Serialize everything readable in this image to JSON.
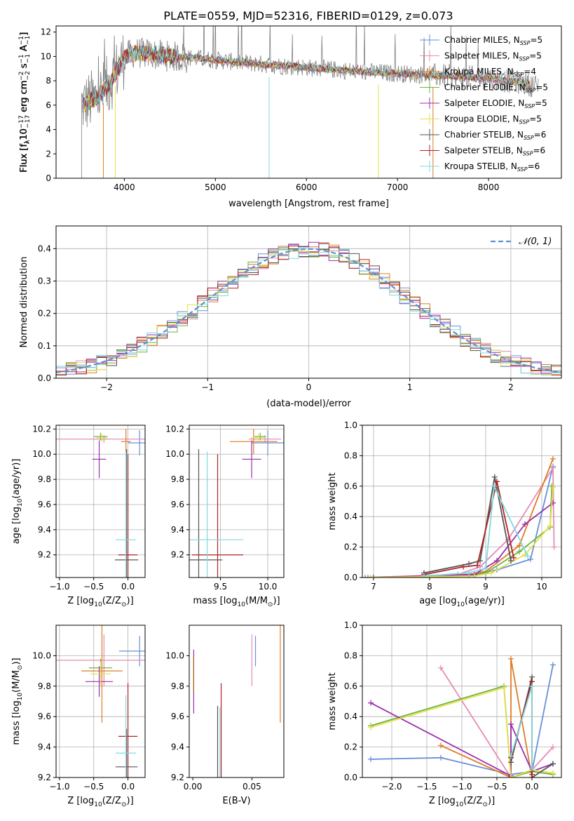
{
  "title": "PLATE=0559, MJD=52316, FIBERID=0129, z=0.073",
  "palette": {
    "Chabrier MILES": "#6a8fd8",
    "Salpeter MILES": "#e58bb8",
    "Kroupa MILES": "#e07b25",
    "Chabrier ELODIE": "#6db33f",
    "Salpeter ELODIE": "#9b2fae",
    "Kroupa ELODIE": "#e5e04a",
    "Chabrier STELIB": "#555555",
    "Salpeter STELIB": "#b22222",
    "Kroupa STELIB": "#7fdbe0",
    "data": "#808080",
    "gauss": "#5b8fd9",
    "grid": "#b0b0b0"
  },
  "chart_data": [
    {
      "id": "spectrum",
      "type": "line",
      "xlabel": "wavelength [Angstrom, rest frame]",
      "ylabel_parts": [
        "Flux [f",
        "λ",
        "10",
        "−17",
        " erg cm",
        "−2",
        " s",
        "−1",
        " A",
        "−1",
        "]"
      ],
      "xlim": [
        3250,
        8800
      ],
      "ylim": [
        0,
        12.5
      ],
      "xticks": [
        4000,
        5000,
        6000,
        7000,
        8000
      ],
      "yticks": [
        0,
        2,
        4,
        6,
        8,
        10,
        12
      ],
      "grid": false,
      "legend_position": "right",
      "legend": [
        {
          "name": "Chabrier MILES",
          "sub": "5"
        },
        {
          "name": "Salpeter MILES",
          "sub": "5"
        },
        {
          "name": "Kroupa MILES",
          "sub": "4"
        },
        {
          "name": "Chabrier ELODIE",
          "sub": "5"
        },
        {
          "name": "Salpeter ELODIE",
          "sub": "5"
        },
        {
          "name": "Kroupa ELODIE",
          "sub": "5"
        },
        {
          "name": "Chabrier STELIB",
          "sub": "6"
        },
        {
          "name": "Salpeter STELIB",
          "sub": "6"
        },
        {
          "name": "Kroupa STELIB",
          "sub": "6"
        }
      ],
      "continuum": {
        "x": [
          3530,
          3700,
          3800,
          3900,
          4000,
          4100,
          4300,
          4500,
          4700,
          5000,
          5300,
          5600,
          6000,
          6500,
          7000,
          7300,
          7500,
          8000,
          8400,
          8550
        ],
        "y": [
          6.0,
          6.6,
          7.4,
          8.6,
          9.9,
          10.3,
          10.2,
          10.0,
          9.9,
          9.7,
          9.5,
          9.3,
          9.1,
          8.8,
          8.6,
          8.5,
          8.4,
          8.2,
          7.8,
          7.5
        ]
      }
    },
    {
      "id": "residuals",
      "type": "histogram",
      "xlabel": "(data-model)/error",
      "ylabel": "Normed distribution",
      "xlim": [
        -2.5,
        2.5
      ],
      "ylim": [
        0,
        0.47
      ],
      "xticks": [
        -2,
        -1,
        0,
        1,
        2
      ],
      "yticks": [
        0.0,
        0.1,
        0.2,
        0.3,
        0.4
      ],
      "grid": true,
      "legend_position": "top-right",
      "gauss_label": "𝒩(0, 1)"
    },
    {
      "id": "age_vs_Z",
      "type": "scatter",
      "xlabel_parts": [
        "Z [log",
        "10",
        "(Z/Z",
        "⊙",
        ")]"
      ],
      "ylabel_parts": [
        "age  [log",
        "10",
        "(age/yr)]"
      ],
      "xlim": [
        -1.05,
        0.25
      ],
      "ylim": [
        9.02,
        10.23
      ],
      "xticks": [
        -1.0,
        -0.5,
        0.0
      ],
      "yticks": [
        9.2,
        9.4,
        9.6,
        9.8,
        10.0,
        10.2
      ],
      "grid": true,
      "points": [
        {
          "m": "Chabrier MILES",
          "x": 0.17,
          "y": 10.09,
          "xerr": 0.17,
          "yerr": 0.1
        },
        {
          "m": "Salpeter MILES",
          "x": -0.35,
          "y": 10.12,
          "xerr": 0.8,
          "yerr": 0.03
        },
        {
          "m": "Kroupa MILES",
          "x": -0.03,
          "y": 10.1,
          "xerr": 0.07,
          "yerr": 0.1
        },
        {
          "m": "Chabrier ELODIE",
          "x": -0.4,
          "y": 10.14,
          "xerr": 0.1,
          "yerr": 0.03
        },
        {
          "m": "Salpeter ELODIE",
          "x": -0.42,
          "y": 9.96,
          "xerr": 0.1,
          "yerr": 0.15
        },
        {
          "m": "Kroupa ELODIE",
          "x": -0.38,
          "y": 10.13,
          "xerr": 0.08,
          "yerr": 0.03
        },
        {
          "m": "Chabrier STELIB",
          "x": -0.02,
          "y": 9.16,
          "xerr": 0.17,
          "yerr": 0.88
        },
        {
          "m": "Salpeter STELIB",
          "x": 0.0,
          "y": 9.2,
          "xerr": 0.14,
          "yerr": 0.8
        },
        {
          "m": "Kroupa STELIB",
          "x": -0.03,
          "y": 9.32,
          "xerr": 0.15,
          "yerr": 0.7
        }
      ]
    },
    {
      "id": "age_vs_mass",
      "type": "scatter",
      "xlabel_parts": [
        "mass [log",
        "10",
        "(M/M",
        "⊙",
        ")]"
      ],
      "ylabel_parts": [],
      "xlim": [
        9.17,
        10.17
      ],
      "ylim": [
        9.02,
        10.23
      ],
      "xticks": [
        9.5,
        10.0
      ],
      "yticks": [
        9.2,
        9.4,
        9.6,
        9.8,
        10.0,
        10.2
      ],
      "grid": true,
      "points": [
        {
          "m": "Chabrier MILES",
          "x": 10.0,
          "y": 10.09,
          "xerr": 0.17,
          "yerr": 0.1
        },
        {
          "m": "Salpeter MILES",
          "x": 9.97,
          "y": 10.12,
          "xerr": 0.17,
          "yerr": 0.03
        },
        {
          "m": "Kroupa MILES",
          "x": 9.85,
          "y": 10.1,
          "xerr": 0.25,
          "yerr": 0.1
        },
        {
          "m": "Chabrier ELODIE",
          "x": 9.92,
          "y": 10.14,
          "xerr": 0.06,
          "yerr": 0.03
        },
        {
          "m": "Salpeter ELODIE",
          "x": 9.83,
          "y": 9.96,
          "xerr": 0.1,
          "yerr": 0.15
        },
        {
          "m": "Kroupa ELODIE",
          "x": 9.9,
          "y": 10.13,
          "xerr": 0.08,
          "yerr": 0.03
        },
        {
          "m": "Chabrier STELIB",
          "x": 9.27,
          "y": 9.16,
          "xerr": 0.25,
          "yerr": 0.88
        },
        {
          "m": "Salpeter STELIB",
          "x": 9.47,
          "y": 9.2,
          "xerr": 0.27,
          "yerr": 0.8
        },
        {
          "m": "Kroupa STELIB",
          "x": 9.36,
          "y": 9.32,
          "xerr": 0.38,
          "yerr": 0.7
        }
      ]
    },
    {
      "id": "massweight_vs_age",
      "type": "line",
      "xlabel_parts": [
        "age  [log",
        "10",
        "(age/yr)]"
      ],
      "ylabel": "mass weight",
      "xlim": [
        6.8,
        10.35
      ],
      "ylim": [
        0,
        1.0
      ],
      "xticks": [
        7,
        8,
        9,
        10
      ],
      "yticks": [
        0.0,
        0.2,
        0.4,
        0.6,
        0.8,
        1.0
      ],
      "grid": true,
      "series": [
        {
          "m": "Chabrier MILES",
          "x": [
            6.85,
            8.8,
            9.2,
            9.8,
            10.2
          ],
          "y": [
            0.0,
            0.02,
            0.05,
            0.12,
            0.73
          ]
        },
        {
          "m": "Salpeter MILES",
          "x": [
            6.85,
            8.5,
            8.9,
            9.4,
            10.2,
            10.22
          ],
          "y": [
            0.0,
            0.02,
            0.07,
            0.25,
            0.72,
            0.2
          ]
        },
        {
          "m": "Kroupa MILES",
          "x": [
            6.95,
            8.7,
            9.0,
            9.6,
            10.2
          ],
          "y": [
            0.0,
            0.02,
            0.04,
            0.21,
            0.78
          ]
        },
        {
          "m": "Chabrier ELODIE",
          "x": [
            6.9,
            8.7,
            9.0,
            9.6,
            10.15,
            10.18
          ],
          "y": [
            0.0,
            0.01,
            0.03,
            0.17,
            0.33,
            0.6
          ]
        },
        {
          "m": "Salpeter ELODIE",
          "x": [
            7.0,
            8.8,
            9.2,
            9.7,
            10.2
          ],
          "y": [
            0.0,
            0.02,
            0.11,
            0.35,
            0.49
          ]
        },
        {
          "m": "Kroupa ELODIE",
          "x": [
            6.95,
            8.8,
            9.1,
            9.7,
            10.15,
            10.2
          ],
          "y": [
            0.0,
            0.01,
            0.03,
            0.15,
            0.34,
            0.59
          ]
        },
        {
          "m": "Chabrier STELIB",
          "x": [
            7.9,
            8.7,
            8.9,
            9.16,
            9.45
          ],
          "y": [
            0.03,
            0.09,
            0.11,
            0.66,
            0.11
          ]
        },
        {
          "m": "Salpeter STELIB",
          "x": [
            7.9,
            8.6,
            8.85,
            9.2,
            9.5
          ],
          "y": [
            0.02,
            0.07,
            0.08,
            0.63,
            0.13
          ]
        },
        {
          "m": "Kroupa STELIB",
          "x": [
            7.9,
            8.7,
            9.0,
            9.15,
            9.75
          ],
          "y": [
            0.01,
            0.03,
            0.06,
            0.6,
            0.14
          ]
        }
      ]
    },
    {
      "id": "mass_vs_Z",
      "type": "scatter",
      "xlabel_parts": [
        "Z [log",
        "10",
        "(Z/Z",
        "⊙",
        ")]"
      ],
      "ylabel_parts": [
        "mass [log",
        "10",
        "(M/M",
        "⊙",
        ")]"
      ],
      "xlim": [
        -1.05,
        0.25
      ],
      "ylim": [
        9.2,
        10.2
      ],
      "xticks": [
        -1.0,
        -0.5,
        0.0
      ],
      "yticks": [
        9.2,
        9.4,
        9.6,
        9.8,
        10.0
      ],
      "grid": true,
      "points": [
        {
          "m": "Chabrier MILES",
          "x": 0.17,
          "y": 10.03,
          "xerr": 0.3,
          "yerr": 0.1
        },
        {
          "m": "Salpeter MILES",
          "x": -0.35,
          "y": 9.97,
          "xerr": 0.7,
          "yerr": 0.17
        },
        {
          "m": "Kroupa MILES",
          "x": -0.38,
          "y": 9.9,
          "xerr": 0.3,
          "yerr": 0.34
        },
        {
          "m": "Chabrier ELODIE",
          "x": -0.4,
          "y": 9.92,
          "xerr": 0.17,
          "yerr": 0.06
        },
        {
          "m": "Salpeter ELODIE",
          "x": -0.42,
          "y": 9.83,
          "xerr": 0.2,
          "yerr": 0.1
        },
        {
          "m": "Kroupa ELODIE",
          "x": -0.4,
          "y": 9.88,
          "xerr": 0.15,
          "yerr": 0.08
        },
        {
          "m": "Chabrier STELIB",
          "x": -0.02,
          "y": 9.27,
          "xerr": 0.16,
          "yerr": 0.25
        },
        {
          "m": "Salpeter STELIB",
          "x": 0.0,
          "y": 9.47,
          "xerr": 0.14,
          "yerr": 0.35
        },
        {
          "m": "Kroupa STELIB",
          "x": -0.03,
          "y": 9.36,
          "xerr": 0.15,
          "yerr": 0.38
        }
      ]
    },
    {
      "id": "mass_vs_ebv",
      "type": "scatter",
      "xlabel": "E(B-V)",
      "xlim": [
        -0.003,
        0.077
      ],
      "ylim": [
        9.2,
        10.2
      ],
      "xticks": [
        0.0,
        0.05
      ],
      "yticks": [
        9.2,
        9.4,
        9.6,
        9.8,
        10.0
      ],
      "grid": false,
      "points": [
        {
          "m": "Chabrier MILES",
          "x": 0.053,
          "y": 10.03,
          "xerr": 0,
          "yerr": 0.1
        },
        {
          "m": "Salpeter MILES",
          "x": 0.05,
          "y": 9.97,
          "xerr": 0,
          "yerr": 0.17
        },
        {
          "m": "Kroupa MILES",
          "x": 0.074,
          "y": 9.9,
          "xerr": 0,
          "yerr": 0.34
        },
        {
          "m": "Chabrier ELODIE",
          "x": 0.0005,
          "y": 9.92,
          "xerr": 0,
          "yerr": 0.06
        },
        {
          "m": "Salpeter ELODIE",
          "x": 0.0008,
          "y": 9.83,
          "xerr": 0,
          "yerr": 0.21
        },
        {
          "m": "Kroupa ELODIE",
          "x": 0.0003,
          "y": 9.88,
          "xerr": 0,
          "yerr": 0.12
        },
        {
          "m": "Chabrier STELIB",
          "x": 0.021,
          "y": 9.27,
          "xerr": 0,
          "yerr": 0.4
        },
        {
          "m": "Salpeter STELIB",
          "x": 0.024,
          "y": 9.47,
          "xerr": 0,
          "yerr": 0.35
        },
        {
          "m": "Kroupa STELIB",
          "x": 0.023,
          "y": 9.36,
          "xerr": 0,
          "yerr": 0.3
        }
      ]
    },
    {
      "id": "massweight_vs_Z",
      "type": "line",
      "xlabel_parts": [
        "Z [log",
        "10",
        "(Z/Z",
        "⊙",
        ")]"
      ],
      "ylabel": "mass weight",
      "xlim": [
        -2.42,
        0.42
      ],
      "ylim": [
        0,
        1.0
      ],
      "xticks": [
        -2.0,
        -1.5,
        -1.0,
        -0.5,
        0.0
      ],
      "yticks": [
        0.0,
        0.2,
        0.4,
        0.6,
        0.8,
        1.0
      ],
      "grid": true,
      "series": [
        {
          "m": "Chabrier MILES",
          "x": [
            -2.3,
            -1.3,
            -0.3,
            0.0,
            0.3
          ],
          "y": [
            0.12,
            0.13,
            0.02,
            0.04,
            0.74
          ]
        },
        {
          "m": "Salpeter MILES",
          "x": [
            -1.3,
            -0.3,
            0.0,
            0.3
          ],
          "y": [
            0.72,
            0.0,
            0.05,
            0.2
          ]
        },
        {
          "m": "Kroupa MILES",
          "x": [
            -1.3,
            -0.3,
            -0.3,
            0.0
          ],
          "y": [
            0.21,
            0.0,
            0.78,
            0.0
          ]
        },
        {
          "m": "Chabrier ELODIE",
          "x": [
            -2.3,
            -0.4,
            -0.3,
            0.0,
            0.3
          ],
          "y": [
            0.34,
            0.6,
            0.0,
            0.04,
            0.02
          ]
        },
        {
          "m": "Salpeter ELODIE",
          "x": [
            -2.3,
            -0.3,
            -0.3,
            0.0,
            0.3
          ],
          "y": [
            0.49,
            0.01,
            0.35,
            0.04,
            0.09
          ]
        },
        {
          "m": "Kroupa ELODIE",
          "x": [
            -2.3,
            -0.4,
            -0.3,
            0.0,
            0.3
          ],
          "y": [
            0.33,
            0.59,
            0.0,
            0.05,
            0.03
          ]
        },
        {
          "m": "Chabrier STELIB",
          "x": [
            -0.3,
            0.0,
            0.0,
            0.3
          ],
          "y": [
            0.1,
            0.66,
            0.0,
            0.09
          ]
        },
        {
          "m": "Salpeter STELIB",
          "x": [
            -0.3,
            0.0,
            0.0
          ],
          "y": [
            0.13,
            0.63,
            0.02
          ]
        },
        {
          "m": "Kroupa STELIB",
          "x": [
            -0.3,
            0.0,
            0.0
          ],
          "y": [
            0.14,
            0.6,
            0.06
          ]
        }
      ]
    }
  ]
}
